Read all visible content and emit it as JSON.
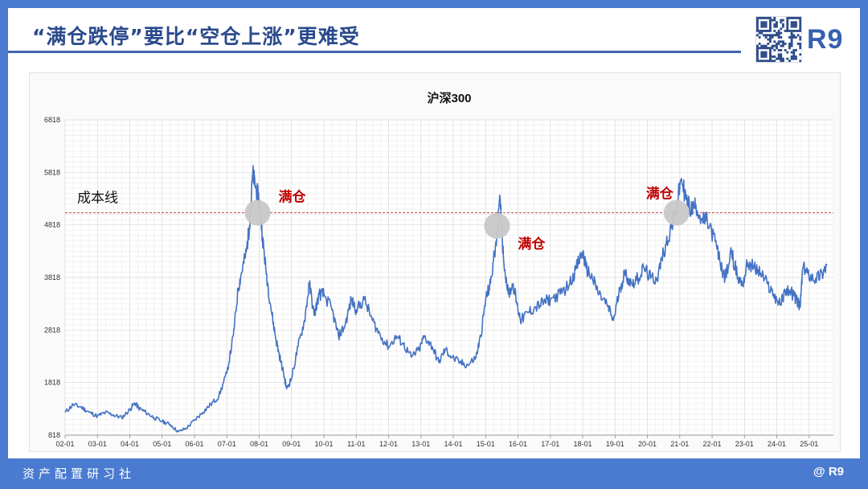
{
  "header": {
    "title": "“满仓跌停”要比“空仓上涨”更难受",
    "logo": "R9",
    "qr_icon": "qr-code-icon"
  },
  "footer": {
    "left": "资产配置研习社",
    "right": "@ R9"
  },
  "colors": {
    "series": "#4472c4",
    "brand": "#3560b0",
    "costline": "#c0504d",
    "annotation": "#c00000",
    "marker": "#c8c8c8"
  },
  "chart_data": {
    "type": "line",
    "title": "沪深300",
    "xlabel": "",
    "ylabel": "",
    "grid": true,
    "yticks": [
      818,
      1818,
      2818,
      3818,
      4818,
      5818,
      6818
    ],
    "ylim": [
      818,
      6818
    ],
    "xlim": [
      2002.0,
      2025.75
    ],
    "xticks": [
      "02-01",
      "03-01",
      "04-01",
      "05-01",
      "06-01",
      "07-01",
      "08-01",
      "09-01",
      "10-01",
      "11-01",
      "12-01",
      "13-01",
      "14-01",
      "15-01",
      "16-01",
      "17-01",
      "18-01",
      "19-01",
      "20-01",
      "21-01",
      "22-01",
      "23-01",
      "24-01",
      "25-01"
    ],
    "series": [
      {
        "points": [
          [
            2002.0,
            1250
          ],
          [
            2002.25,
            1400
          ],
          [
            2002.5,
            1350
          ],
          [
            2002.75,
            1250
          ],
          [
            2003.0,
            1180
          ],
          [
            2003.25,
            1250
          ],
          [
            2003.5,
            1200
          ],
          [
            2003.75,
            1150
          ],
          [
            2004.0,
            1300
          ],
          [
            2004.15,
            1430
          ],
          [
            2004.3,
            1320
          ],
          [
            2004.5,
            1250
          ],
          [
            2004.75,
            1150
          ],
          [
            2005.0,
            1080
          ],
          [
            2005.25,
            1020
          ],
          [
            2005.5,
            880
          ],
          [
            2005.75,
            950
          ],
          [
            2006.0,
            1100
          ],
          [
            2006.25,
            1250
          ],
          [
            2006.5,
            1400
          ],
          [
            2006.75,
            1550
          ],
          [
            2007.0,
            2000
          ],
          [
            2007.2,
            2700
          ],
          [
            2007.35,
            3600
          ],
          [
            2007.45,
            3900
          ],
          [
            2007.6,
            4300
          ],
          [
            2007.7,
            4800
          ],
          [
            2007.8,
            5800
          ],
          [
            2007.9,
            5500
          ],
          [
            2008.0,
            5300
          ],
          [
            2008.1,
            4600
          ],
          [
            2008.2,
            4000
          ],
          [
            2008.35,
            3300
          ],
          [
            2008.5,
            2700
          ],
          [
            2008.6,
            2400
          ],
          [
            2008.75,
            2000
          ],
          [
            2008.85,
            1700
          ],
          [
            2009.0,
            1900
          ],
          [
            2009.2,
            2500
          ],
          [
            2009.4,
            3000
          ],
          [
            2009.55,
            3700
          ],
          [
            2009.7,
            3100
          ],
          [
            2009.85,
            3500
          ],
          [
            2010.0,
            3500
          ],
          [
            2010.25,
            3200
          ],
          [
            2010.45,
            2700
          ],
          [
            2010.65,
            2900
          ],
          [
            2010.85,
            3400
          ],
          [
            2011.0,
            3200
          ],
          [
            2011.25,
            3400
          ],
          [
            2011.5,
            3000
          ],
          [
            2011.75,
            2700
          ],
          [
            2012.0,
            2500
          ],
          [
            2012.25,
            2700
          ],
          [
            2012.45,
            2550
          ],
          [
            2012.7,
            2300
          ],
          [
            2012.95,
            2450
          ],
          [
            2013.1,
            2700
          ],
          [
            2013.35,
            2500
          ],
          [
            2013.55,
            2200
          ],
          [
            2013.75,
            2450
          ],
          [
            2013.95,
            2300
          ],
          [
            2014.2,
            2200
          ],
          [
            2014.45,
            2150
          ],
          [
            2014.7,
            2300
          ],
          [
            2014.85,
            2700
          ],
          [
            2015.0,
            3400
          ],
          [
            2015.15,
            3700
          ],
          [
            2015.3,
            4400
          ],
          [
            2015.45,
            5300
          ],
          [
            2015.55,
            4200
          ],
          [
            2015.7,
            3500
          ],
          [
            2015.85,
            3700
          ],
          [
            2016.0,
            3200
          ],
          [
            2016.1,
            3000
          ],
          [
            2016.3,
            3150
          ],
          [
            2016.55,
            3250
          ],
          [
            2016.8,
            3350
          ],
          [
            2017.0,
            3400
          ],
          [
            2017.3,
            3500
          ],
          [
            2017.6,
            3700
          ],
          [
            2017.8,
            4000
          ],
          [
            2018.0,
            4300
          ],
          [
            2018.1,
            4000
          ],
          [
            2018.3,
            3800
          ],
          [
            2018.5,
            3500
          ],
          [
            2018.75,
            3300
          ],
          [
            2018.95,
            3000
          ],
          [
            2019.15,
            3600
          ],
          [
            2019.3,
            3900
          ],
          [
            2019.5,
            3700
          ],
          [
            2019.7,
            3800
          ],
          [
            2019.9,
            4000
          ],
          [
            2020.1,
            3800
          ],
          [
            2020.3,
            3800
          ],
          [
            2020.5,
            4300
          ],
          [
            2020.7,
            4700
          ],
          [
            2020.85,
            5000
          ],
          [
            2021.05,
            5700
          ],
          [
            2021.2,
            5300
          ],
          [
            2021.35,
            5100
          ],
          [
            2021.5,
            5200
          ],
          [
            2021.7,
            4900
          ],
          [
            2021.85,
            4900
          ],
          [
            2022.1,
            4500
          ],
          [
            2022.25,
            4100
          ],
          [
            2022.4,
            3800
          ],
          [
            2022.6,
            4300
          ],
          [
            2022.8,
            3800
          ],
          [
            2022.95,
            3700
          ],
          [
            2023.1,
            4100
          ],
          [
            2023.3,
            4000
          ],
          [
            2023.5,
            3900
          ],
          [
            2023.7,
            3700
          ],
          [
            2023.9,
            3500
          ],
          [
            2024.1,
            3300
          ],
          [
            2024.3,
            3600
          ],
          [
            2024.5,
            3500
          ],
          [
            2024.6,
            3400
          ],
          [
            2024.72,
            3250
          ],
          [
            2024.8,
            4000
          ],
          [
            2024.95,
            3900
          ],
          [
            2025.2,
            3800
          ],
          [
            2025.4,
            3900
          ],
          [
            2025.55,
            4050
          ]
        ]
      }
    ],
    "reference_line": {
      "label": "成本线",
      "value": 5050
    },
    "annotations": [
      {
        "text": "满仓",
        "x": 2007.95,
        "y": 5050
      },
      {
        "text": "满仓",
        "x": 2015.35,
        "y": 4800
      },
      {
        "text": "满仓",
        "x": 2020.9,
        "y": 5050
      }
    ]
  }
}
